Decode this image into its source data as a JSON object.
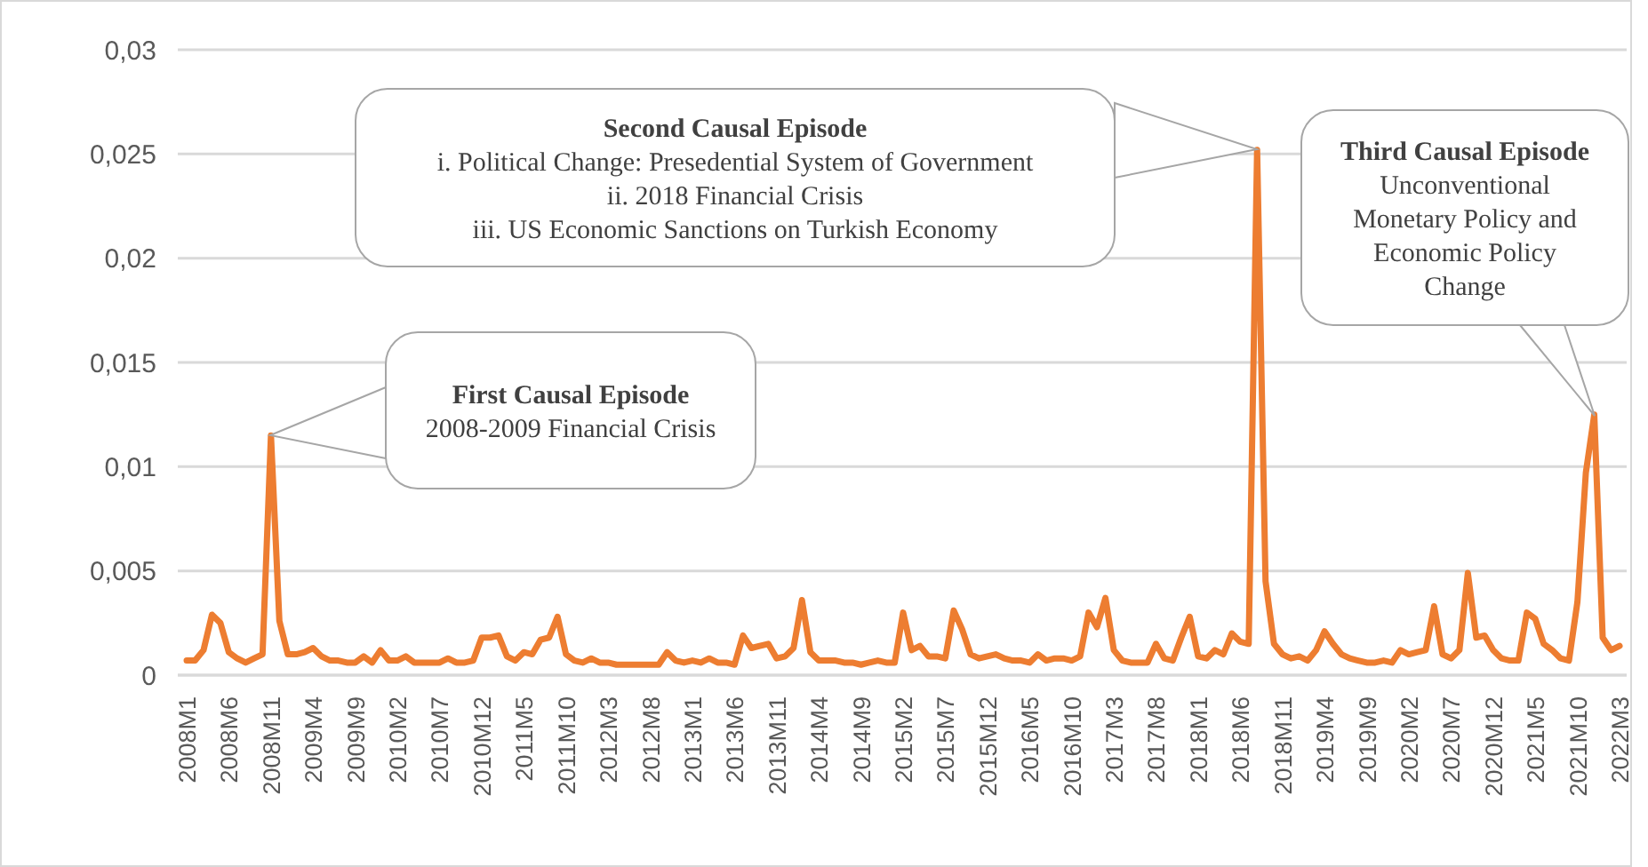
{
  "chart_data": {
    "type": "line",
    "categories": [
      "2008M1",
      null,
      null,
      null,
      null,
      "2008M6",
      null,
      null,
      null,
      null,
      "2008M11",
      null,
      null,
      null,
      null,
      "2009M4",
      null,
      null,
      null,
      null,
      "2009M9",
      null,
      null,
      null,
      null,
      "2010M2",
      null,
      null,
      null,
      null,
      "2010M7",
      null,
      null,
      null,
      null,
      "2010M12",
      null,
      null,
      null,
      null,
      "2011M5",
      null,
      null,
      null,
      null,
      "2011M10",
      null,
      null,
      null,
      null,
      "2012M3",
      null,
      null,
      null,
      null,
      "2012M8",
      null,
      null,
      null,
      null,
      "2013M1",
      null,
      null,
      null,
      null,
      "2013M6",
      null,
      null,
      null,
      null,
      "2013M11",
      null,
      null,
      null,
      null,
      "2014M4",
      null,
      null,
      null,
      null,
      "2014M9",
      null,
      null,
      null,
      null,
      "2015M2",
      null,
      null,
      null,
      null,
      "2015M7",
      null,
      null,
      null,
      null,
      "2015M12",
      null,
      null,
      null,
      null,
      "2016M5",
      null,
      null,
      null,
      null,
      "2016M10",
      null,
      null,
      null,
      null,
      "2017M3",
      null,
      null,
      null,
      null,
      "2017M8",
      null,
      null,
      null,
      null,
      "2018M1",
      null,
      null,
      null,
      null,
      "2018M6",
      null,
      null,
      null,
      null,
      "2018M11",
      null,
      null,
      null,
      null,
      "2019M4",
      null,
      null,
      null,
      null,
      "2019M9",
      null,
      null,
      null,
      null,
      "2020M2",
      null,
      null,
      null,
      null,
      "2020M7",
      null,
      null,
      null,
      null,
      "2020M12",
      null,
      null,
      null,
      null,
      "2021M5",
      null,
      null,
      null,
      null,
      "2021M10",
      null,
      null,
      null,
      null,
      "2022M3"
    ],
    "series": [
      {
        "color": "#ed7d31",
        "values": [
          0.0007,
          0.0007,
          0.0012,
          0.0029,
          0.0025,
          0.0011,
          0.0008,
          0.0006,
          0.0008,
          0.001,
          0.0115,
          0.0026,
          0.001,
          0.001,
          0.0011,
          0.0013,
          0.0009,
          0.0007,
          0.0007,
          0.0006,
          0.0006,
          0.0009,
          0.0006,
          0.0012,
          0.0007,
          0.0007,
          0.0009,
          0.0006,
          0.0006,
          0.0006,
          0.0006,
          0.0008,
          0.0006,
          0.0006,
          0.0007,
          0.0018,
          0.0018,
          0.0019,
          0.0009,
          0.0007,
          0.0011,
          0.001,
          0.0017,
          0.0018,
          0.0028,
          0.001,
          0.0007,
          0.0006,
          0.0008,
          0.0006,
          0.0006,
          0.0005,
          0.0005,
          0.0005,
          0.0005,
          0.0005,
          0.0005,
          0.0011,
          0.0007,
          0.0006,
          0.0007,
          0.0006,
          0.0008,
          0.0006,
          0.0006,
          0.0005,
          0.0019,
          0.0013,
          0.0014,
          0.0015,
          0.0008,
          0.0009,
          0.0013,
          0.0036,
          0.0011,
          0.0007,
          0.0007,
          0.0007,
          0.0006,
          0.0006,
          0.0005,
          0.0006,
          0.0007,
          0.0006,
          0.0006,
          0.003,
          0.0012,
          0.0014,
          0.0009,
          0.0009,
          0.0008,
          0.0031,
          0.0022,
          0.001,
          0.0008,
          0.0009,
          0.001,
          0.0008,
          0.0007,
          0.0007,
          0.0006,
          0.001,
          0.0007,
          0.0008,
          0.0008,
          0.0007,
          0.0009,
          0.003,
          0.0023,
          0.0037,
          0.0012,
          0.0007,
          0.0006,
          0.0006,
          0.0006,
          0.0015,
          0.0008,
          0.0007,
          0.0018,
          0.0028,
          0.0009,
          0.0008,
          0.0012,
          0.001,
          0.002,
          0.0016,
          0.0015,
          0.0252,
          0.0045,
          0.0015,
          0.001,
          0.0008,
          0.0009,
          0.0007,
          0.0012,
          0.0021,
          0.0015,
          0.001,
          0.0008,
          0.0007,
          0.0006,
          0.0006,
          0.0007,
          0.0006,
          0.0012,
          0.001,
          0.0011,
          0.0012,
          0.0033,
          0.001,
          0.0008,
          0.0012,
          0.0049,
          0.0018,
          0.0019,
          0.0012,
          0.0008,
          0.0007,
          0.0007,
          0.003,
          0.0027,
          0.0015,
          0.0012,
          0.0008,
          0.0007,
          0.0035,
          0.0097,
          0.0125,
          0.0018,
          0.0012,
          0.0014
        ]
      }
    ],
    "ylim": [
      0,
      0.03
    ],
    "yticks": [
      0,
      {
        "value": 0.005,
        "label": "0,005"
      },
      {
        "value": 0.01,
        "label": "0,01"
      },
      {
        "value": 0.015,
        "label": "0,015"
      },
      {
        "value": 0.02,
        "label": "0,02"
      },
      {
        "value": 0.025,
        "label": "0,025"
      },
      {
        "value": 0.03,
        "label": "0,03"
      }
    ],
    "grid": "y",
    "marker": "none",
    "line_style": "solid",
    "annotations": [
      "First Causal Episode\n2008-2009 Financial Crisis",
      "Second Causal Episode\ni. Political Change: Presedential System of Government\nii. 2018 Financial Crisis\niii. US Economic Sanctions on Turkish Economy",
      "Third Causal Episode\nUnconventional\nMonetary Policy and\nEconomic Policy\nChange"
    ]
  }
}
